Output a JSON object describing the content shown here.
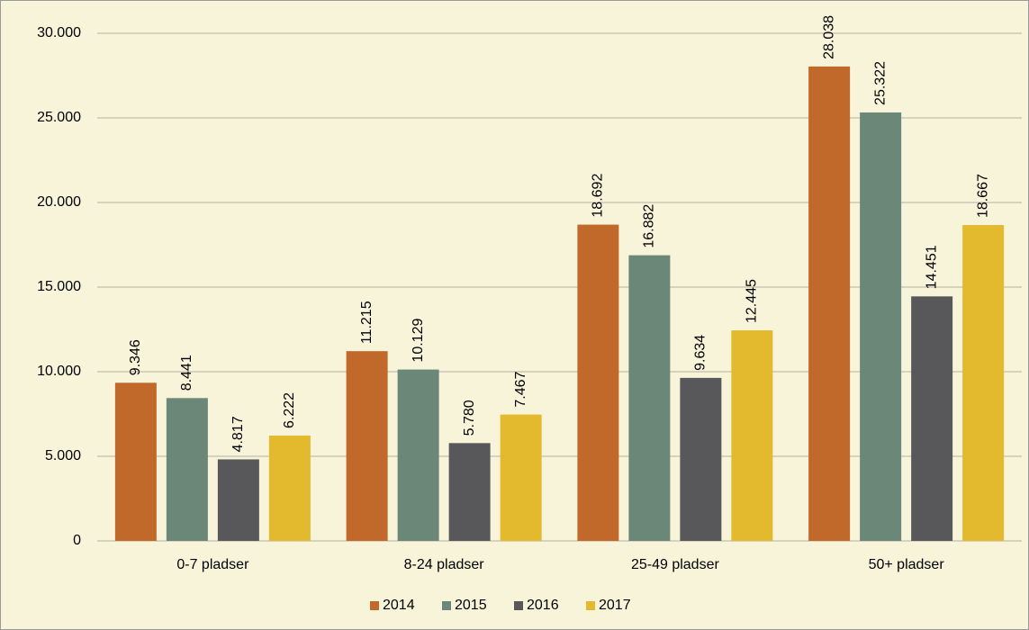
{
  "chart_data": {
    "type": "bar",
    "categories": [
      "0-7 pladser",
      "8-24 pladser",
      "25-49 pladser",
      "50+ pladser"
    ],
    "series": [
      {
        "name": "2014",
        "color": "#c0692b",
        "values": [
          9346,
          11215,
          18692,
          28038
        ],
        "value_labels": [
          "9.346",
          "11.215",
          "18.692",
          "28.038"
        ]
      },
      {
        "name": "2015",
        "color": "#6b8778",
        "values": [
          8441,
          10129,
          16882,
          25322
        ],
        "value_labels": [
          "8.441",
          "10.129",
          "16.882",
          "25.322"
        ]
      },
      {
        "name": "2016",
        "color": "#58585a",
        "values": [
          4817,
          5780,
          9634,
          14451
        ],
        "value_labels": [
          "4.817",
          "5.780",
          "9.634",
          "14.451"
        ]
      },
      {
        "name": "2017",
        "color": "#e3b92e",
        "values": [
          6222,
          7467,
          12445,
          18667
        ],
        "value_labels": [
          "6.222",
          "7.467",
          "12.445",
          "18.667"
        ]
      }
    ],
    "ylim": [
      0,
      30000
    ],
    "yticks": [
      0,
      {
        "value": 5000,
        "label": "5.000"
      },
      {
        "value": 10000,
        "label": "10.000"
      },
      {
        "value": 15000,
        "label": "15.000"
      },
      {
        "value": 20000,
        "label": "20.000"
      },
      {
        "value": 25000,
        "label": "25.000"
      },
      {
        "value": 30000,
        "label": "30.000"
      }
    ],
    "grid": true,
    "legend": "bottom"
  }
}
